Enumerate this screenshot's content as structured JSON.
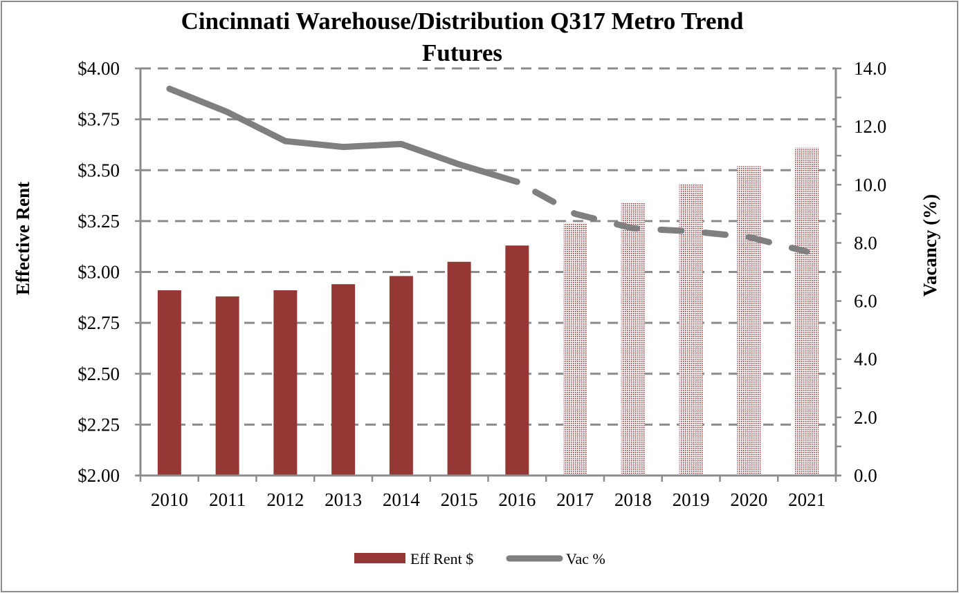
{
  "chart_data": {
    "type": "bar",
    "title_lines": [
      "Cincinnati Warehouse/Distribution Q317 Metro Trend",
      "Futures"
    ],
    "categories": [
      "2010",
      "2011",
      "2012",
      "2013",
      "2014",
      "2015",
      "2016",
      "2017",
      "2018",
      "2019",
      "2020",
      "2021"
    ],
    "series": [
      {
        "name": "Eff Rent $",
        "type": "bar",
        "axis": "left",
        "color": "#953735",
        "values": [
          2.91,
          2.88,
          2.91,
          2.94,
          2.98,
          3.05,
          3.13,
          3.24,
          3.34,
          3.43,
          3.52,
          3.61
        ],
        "forecast_from_index": 7,
        "forecast_style": "dotted-pattern"
      },
      {
        "name": "Vac %",
        "type": "line",
        "axis": "right",
        "color": "#7f7f7f",
        "values": [
          13.3,
          12.5,
          11.5,
          11.3,
          11.4,
          10.7,
          10.1,
          9.0,
          8.5,
          8.4,
          8.2,
          7.7
        ],
        "forecast_from_index": 6,
        "forecast_style": "dashed"
      }
    ],
    "left_axis": {
      "label": "Effective Rent",
      "ylim": [
        2.0,
        4.0
      ],
      "ticks": [
        2.0,
        2.25,
        2.5,
        2.75,
        3.0,
        3.25,
        3.5,
        3.75,
        4.0
      ],
      "tick_labels": [
        "$2.00",
        "$2.25",
        "$2.50",
        "$2.75",
        "$3.00",
        "$3.25",
        "$3.50",
        "$3.75",
        "$4.00"
      ]
    },
    "right_axis": {
      "label": "Vacancy (%)",
      "ylim": [
        0,
        14
      ],
      "ticks": [
        0,
        2,
        4,
        6,
        8,
        10,
        12,
        14
      ],
      "tick_labels": [
        "0.0",
        "2.0",
        "4.0",
        "6.0",
        "8.0",
        "10.0",
        "12.0",
        "14.0"
      ]
    },
    "xlabel": "",
    "grid": "horizontal dashed",
    "legend": {
      "position": "bottom",
      "entries": [
        "Eff Rent $",
        "Vac %"
      ]
    },
    "colors": {
      "bar": "#953735",
      "line": "#7f7f7f",
      "grid": "#8c8c8c",
      "axis": "#8c8c8c"
    }
  }
}
